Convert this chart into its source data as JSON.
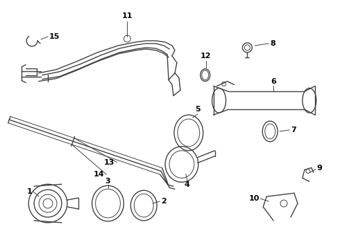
{
  "bg_color": "#ffffff",
  "line_color": "#404040",
  "text_color": "#000000",
  "fig_width": 4.9,
  "fig_height": 3.6,
  "dpi": 100
}
